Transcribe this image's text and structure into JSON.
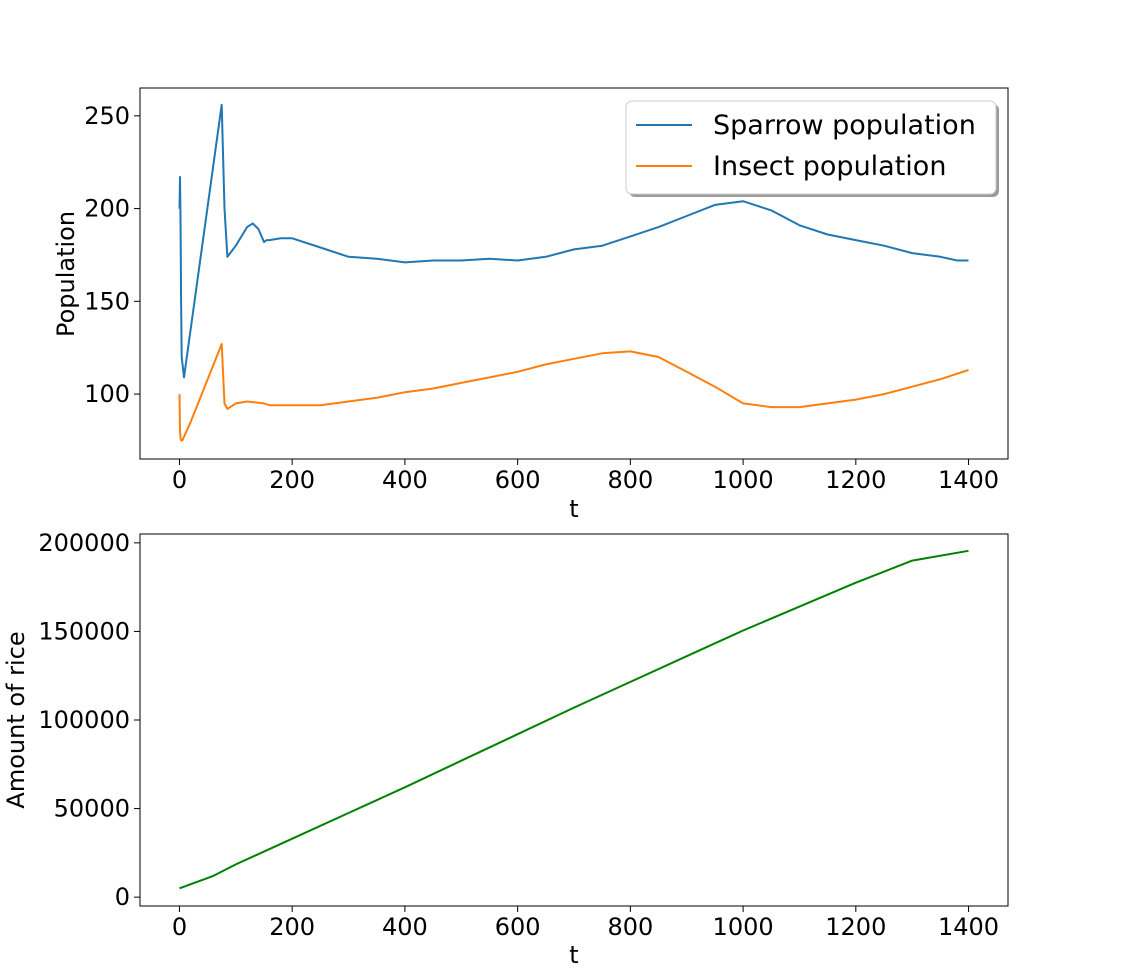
{
  "chart_data": [
    {
      "type": "line",
      "xlabel": "t",
      "ylabel": "Population",
      "xlim": [
        -70,
        1470
      ],
      "ylim": [
        65,
        265
      ],
      "xticks": [
        0,
        200,
        400,
        600,
        800,
        1000,
        1200,
        1400
      ],
      "yticks": [
        100,
        150,
        200,
        250
      ],
      "grid": false,
      "legend_position": "top-right",
      "series": [
        {
          "name": "Sparrow population",
          "color": "#1f77b4",
          "x": [
            0,
            1,
            2,
            3,
            4,
            8,
            75,
            80,
            85,
            100,
            120,
            130,
            140,
            150,
            155,
            160,
            180,
            200,
            250,
            300,
            350,
            400,
            450,
            500,
            550,
            600,
            650,
            700,
            750,
            800,
            850,
            900,
            950,
            1000,
            1050,
            1100,
            1150,
            1200,
            1250,
            1300,
            1350,
            1380,
            1400
          ],
          "y": [
            200,
            217,
            190,
            150,
            120,
            109,
            256,
            200,
            174,
            180,
            190,
            192,
            189,
            182,
            183,
            183,
            184,
            184,
            179,
            174,
            173,
            171,
            172,
            172,
            173,
            172,
            174,
            178,
            180,
            185,
            190,
            196,
            202,
            204,
            199,
            191,
            186,
            183,
            180,
            176,
            174,
            172,
            172
          ]
        },
        {
          "name": "Insect population",
          "color": "#ff7f0e",
          "x": [
            0,
            1,
            2,
            3,
            5,
            20,
            75,
            80,
            85,
            100,
            120,
            150,
            160,
            200,
            250,
            300,
            350,
            400,
            450,
            500,
            550,
            600,
            650,
            700,
            750,
            800,
            850,
            900,
            950,
            1000,
            1050,
            1100,
            1150,
            1200,
            1250,
            1300,
            1350,
            1400
          ],
          "y": [
            100,
            80,
            76,
            75,
            75,
            85,
            127,
            95,
            92,
            95,
            96,
            95,
            94,
            94,
            94,
            96,
            98,
            101,
            103,
            106,
            109,
            112,
            116,
            119,
            122,
            123,
            120,
            112,
            104,
            95,
            93,
            93,
            95,
            97,
            100,
            104,
            108,
            113
          ]
        }
      ]
    },
    {
      "type": "line",
      "xlabel": "t",
      "ylabel": "Amount of rice",
      "xlim": [
        -70,
        1470
      ],
      "ylim": [
        -5000,
        205000
      ],
      "xticks": [
        0,
        200,
        400,
        600,
        800,
        1000,
        1200,
        1400
      ],
      "yticks": [
        0,
        50000,
        100000,
        150000,
        200000
      ],
      "grid": false,
      "series": [
        {
          "color": "#008000",
          "x": [
            0,
            60,
            100,
            200,
            300,
            400,
            500,
            600,
            700,
            800,
            900,
            1000,
            1100,
            1200,
            1300,
            1400
          ],
          "y": [
            5000,
            12000,
            18500,
            33000,
            47500,
            62000,
            77000,
            92000,
            107000,
            121500,
            136000,
            150500,
            164000,
            177500,
            190000,
            195500
          ]
        }
      ]
    }
  ]
}
